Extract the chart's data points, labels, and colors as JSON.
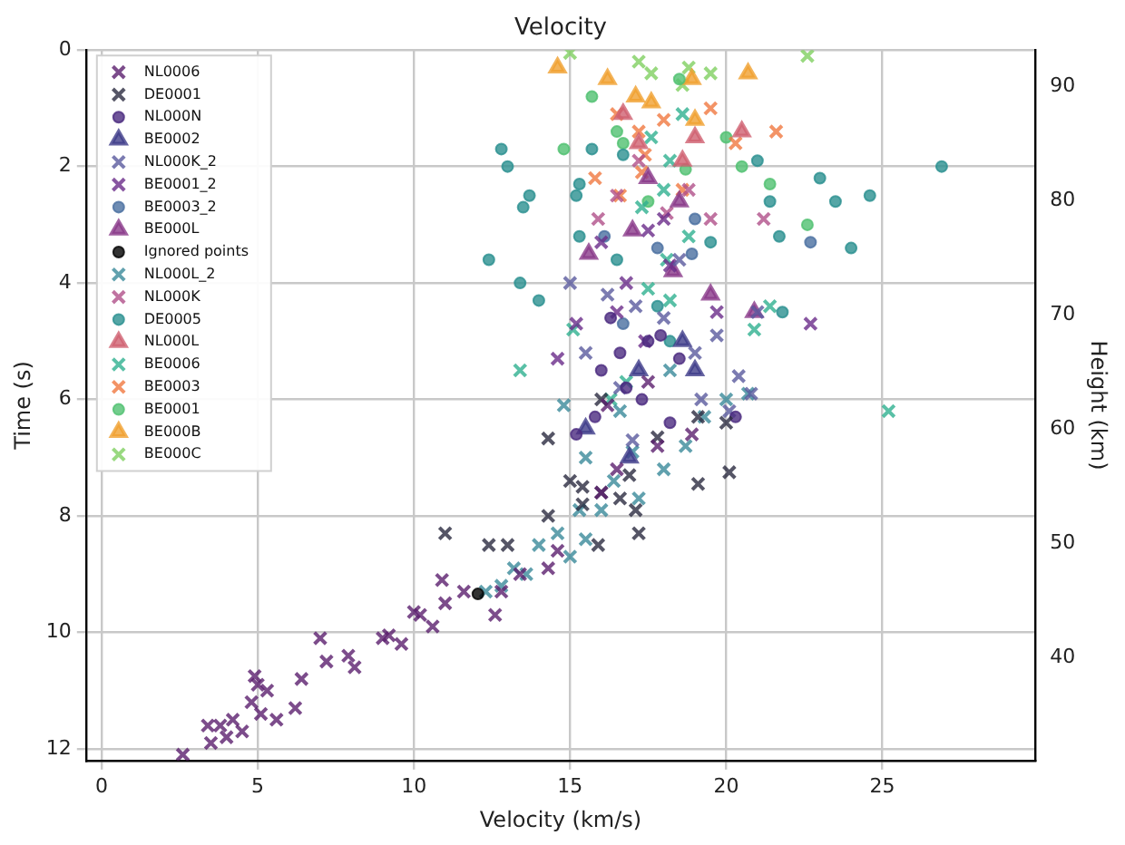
{
  "chart_data": {
    "type": "scatter",
    "title": "Velocity",
    "xlabel": "Velocity (km/s)",
    "ylabel": "Time (s)",
    "y2label": "Height (km)",
    "xlim": [
      -0.5,
      29.9
    ],
    "xticks": [
      0,
      5,
      10,
      15,
      20,
      25
    ],
    "ylim": [
      12.2,
      0
    ],
    "yticks": [
      0,
      2,
      4,
      6,
      8,
      10,
      12
    ],
    "y2lim": [
      31,
      93.2
    ],
    "y2ticks": [
      40,
      50,
      60,
      70,
      80,
      90
    ],
    "grid": true,
    "legend": "top left",
    "series": [
      {
        "name": "NL0006",
        "color": "#5b1f6e",
        "marker": "cross",
        "x": [
          2.6,
          3.4,
          3.5,
          3.8,
          4.0,
          4.2,
          4.5,
          4.8,
          4.9,
          5.0,
          5.1,
          5.3,
          5.6,
          6.2,
          6.4,
          7.0,
          7.2,
          7.9,
          8.1,
          9.0,
          9.2,
          9.6,
          10.0,
          10.2,
          10.6,
          10.9,
          11.0,
          11.6,
          12.6,
          12.8,
          13.4,
          14.3,
          14.6,
          16.0,
          16.5,
          17.8,
          16.2,
          17.5,
          18.9
        ],
        "values": [
          12.1,
          11.6,
          11.9,
          11.6,
          11.8,
          11.5,
          11.7,
          11.2,
          10.75,
          10.9,
          11.4,
          11.0,
          11.5,
          11.3,
          10.8,
          10.1,
          10.5,
          10.4,
          10.6,
          10.1,
          10.05,
          10.2,
          9.65,
          9.7,
          9.9,
          9.1,
          9.5,
          9.3,
          9.7,
          9.3,
          9.0,
          8.9,
          8.6,
          7.6,
          7.2,
          6.8,
          6.1,
          5.7,
          6.6
        ]
      },
      {
        "name": "DE0001",
        "color": "#2a2a40",
        "marker": "cross",
        "x": [
          11.0,
          12.4,
          13.0,
          14.3,
          15.0,
          15.4,
          15.4,
          16.0,
          16.9,
          17.1,
          17.2,
          15.9,
          16.6,
          19.1,
          20.1,
          19.1,
          20.0,
          17.8,
          14.3,
          16.0
        ],
        "values": [
          8.3,
          8.5,
          8.5,
          8.0,
          7.4,
          7.5,
          7.8,
          7.6,
          7.3,
          7.9,
          8.3,
          8.5,
          7.7,
          7.45,
          7.25,
          6.3,
          6.4,
          6.65,
          6.67,
          6.0
        ]
      },
      {
        "name": "NL000N",
        "color": "#4b2a80",
        "marker": "circle",
        "x": [
          15.2,
          15.8,
          16.6,
          16.8,
          17.5,
          16.3,
          17.3,
          18.2,
          20.3,
          16.0,
          18.5,
          17.9
        ],
        "values": [
          6.6,
          6.3,
          5.2,
          5.8,
          5.0,
          4.6,
          6.0,
          6.4,
          6.3,
          5.5,
          5.3,
          4.9
        ]
      },
      {
        "name": "BE0002",
        "color": "#3f3c8a",
        "marker": "triangle",
        "x": [
          15.5,
          17.2,
          18.6,
          16.9,
          19.0
        ],
        "values": [
          6.5,
          5.5,
          5.0,
          7.0,
          5.5
        ]
      },
      {
        "name": "NL000K_2",
        "color": "#5a5a9e",
        "marker": "cross",
        "x": [
          15.5,
          16.6,
          17.1,
          18.0,
          19.0,
          19.2,
          20.1,
          20.4,
          20.8,
          17.0,
          15.0,
          16.2,
          18.5,
          21.0,
          19.7
        ],
        "values": [
          5.2,
          5.8,
          4.4,
          4.6,
          5.2,
          6.0,
          6.2,
          5.6,
          5.9,
          6.7,
          4.0,
          4.2,
          3.6,
          4.5,
          4.9
        ]
      },
      {
        "name": "BE0001_2",
        "color": "#6a2c8a",
        "marker": "cross",
        "x": [
          14.6,
          15.2,
          16.5,
          17.4,
          18.2,
          19.7,
          22.7,
          16.0,
          17.5,
          18.0,
          16.8
        ],
        "values": [
          5.3,
          4.7,
          4.5,
          5.0,
          3.7,
          4.5,
          4.7,
          3.3,
          3.1,
          2.9,
          4.0
        ]
      },
      {
        "name": "BE0003_2",
        "color": "#4a6fa0",
        "marker": "circle",
        "x": [
          16.1,
          17.8,
          18.9,
          22.7,
          16.7,
          19.0
        ],
        "values": [
          3.2,
          3.4,
          3.5,
          3.3,
          4.7,
          2.9
        ]
      },
      {
        "name": "BE000L",
        "color": "#8a3a8a",
        "marker": "triangle",
        "x": [
          15.6,
          18.3,
          20.9,
          17.0,
          18.5,
          19.5,
          17.5
        ],
        "values": [
          3.5,
          3.8,
          4.5,
          3.1,
          2.6,
          4.2,
          2.2
        ]
      },
      {
        "name": "Ignored points",
        "color": "#000000",
        "marker": "circle",
        "x": [
          12.05
        ],
        "values": [
          9.34
        ]
      },
      {
        "name": "NL000L_2",
        "color": "#3a8a9a",
        "marker": "cross",
        "x": [
          12.3,
          12.8,
          13.2,
          13.6,
          14.0,
          14.6,
          15.0,
          15.5,
          15.3,
          16.0,
          16.4,
          17.2,
          18.0,
          17.0,
          18.7,
          20.0,
          20.7,
          14.8,
          15.5,
          16.6,
          19.3,
          18.2
        ],
        "values": [
          9.3,
          9.2,
          8.9,
          9.0,
          8.5,
          8.3,
          8.7,
          8.4,
          7.9,
          7.9,
          7.4,
          7.7,
          7.2,
          6.9,
          6.8,
          6.0,
          5.9,
          6.1,
          7.0,
          6.2,
          6.3,
          5.5
        ]
      },
      {
        "name": "NL000K",
        "color": "#b0508a",
        "marker": "cross",
        "x": [
          15.9,
          17.2,
          18.1,
          19.5,
          21.2,
          16.5,
          18.8
        ],
        "values": [
          2.9,
          1.9,
          2.8,
          2.9,
          2.9,
          2.5,
          2.4
        ]
      },
      {
        "name": "DE0005",
        "color": "#2a9090",
        "marker": "circle",
        "x": [
          13.4,
          12.4,
          14.0,
          15.3,
          13.7,
          13.5,
          12.8,
          13.0,
          15.3,
          15.2,
          16.5,
          17.8,
          19.5,
          21.0,
          21.4,
          23.0,
          23.5,
          24.0,
          21.7,
          26.9,
          24.6,
          21.8,
          15.7,
          16.7,
          18.2
        ],
        "values": [
          4.0,
          3.6,
          4.3,
          3.2,
          2.5,
          2.7,
          1.7,
          2.0,
          2.3,
          2.5,
          3.6,
          4.4,
          3.3,
          1.9,
          2.6,
          2.2,
          2.6,
          3.4,
          3.2,
          2.0,
          2.5,
          4.5,
          1.7,
          1.8,
          5.0
        ]
      },
      {
        "name": "NL000L",
        "color": "#d06070",
        "marker": "triangle",
        "x": [
          17.2,
          19.0,
          20.5,
          16.7,
          18.6
        ],
        "values": [
          1.6,
          1.5,
          1.4,
          1.1,
          1.9
        ]
      },
      {
        "name": "BE0006",
        "color": "#30b090",
        "marker": "cross",
        "x": [
          15.1,
          13.4,
          16.8,
          18.2,
          20.9,
          21.4,
          25.2,
          17.6,
          18.2,
          18.0,
          17.3,
          18.8,
          17.5,
          16.3,
          18.6,
          18.1
        ],
        "values": [
          4.8,
          5.5,
          5.7,
          4.3,
          4.8,
          4.4,
          6.2,
          1.5,
          1.9,
          2.4,
          2.7,
          3.2,
          4.1,
          6.0,
          1.1,
          3.6
        ]
      },
      {
        "name": "BE0003",
        "color": "#f07840",
        "marker": "cross",
        "x": [
          16.5,
          17.2,
          18.0,
          21.6,
          19.5,
          20.3,
          15.8,
          16.6,
          17.3,
          18.6,
          17.4
        ],
        "values": [
          1.1,
          1.4,
          1.2,
          1.4,
          1.0,
          1.6,
          2.2,
          2.5,
          2.1,
          2.4,
          1.8
        ]
      },
      {
        "name": "BE0001",
        "color": "#50c070",
        "marker": "circle",
        "x": [
          15.7,
          14.8,
          16.7,
          18.7,
          20.5,
          21.4,
          20.0,
          17.5,
          16.5,
          22.6,
          18.5
        ],
        "values": [
          0.8,
          1.7,
          1.6,
          2.05,
          2.0,
          2.3,
          1.5,
          2.6,
          1.4,
          3.0,
          0.5
        ]
      },
      {
        "name": "BE000B",
        "color": "#f0a030",
        "marker": "triangle",
        "x": [
          14.6,
          16.2,
          17.1,
          18.9,
          20.7,
          19.0,
          17.6
        ],
        "values": [
          0.3,
          0.5,
          0.8,
          0.5,
          0.4,
          1.2,
          0.9
        ]
      },
      {
        "name": "BE000C",
        "color": "#80d060",
        "marker": "cross",
        "x": [
          15.0,
          17.2,
          18.8,
          19.5,
          22.6,
          17.6,
          18.6
        ],
        "values": [
          0.05,
          0.2,
          0.3,
          0.4,
          0.1,
          0.4,
          0.6
        ]
      }
    ]
  }
}
